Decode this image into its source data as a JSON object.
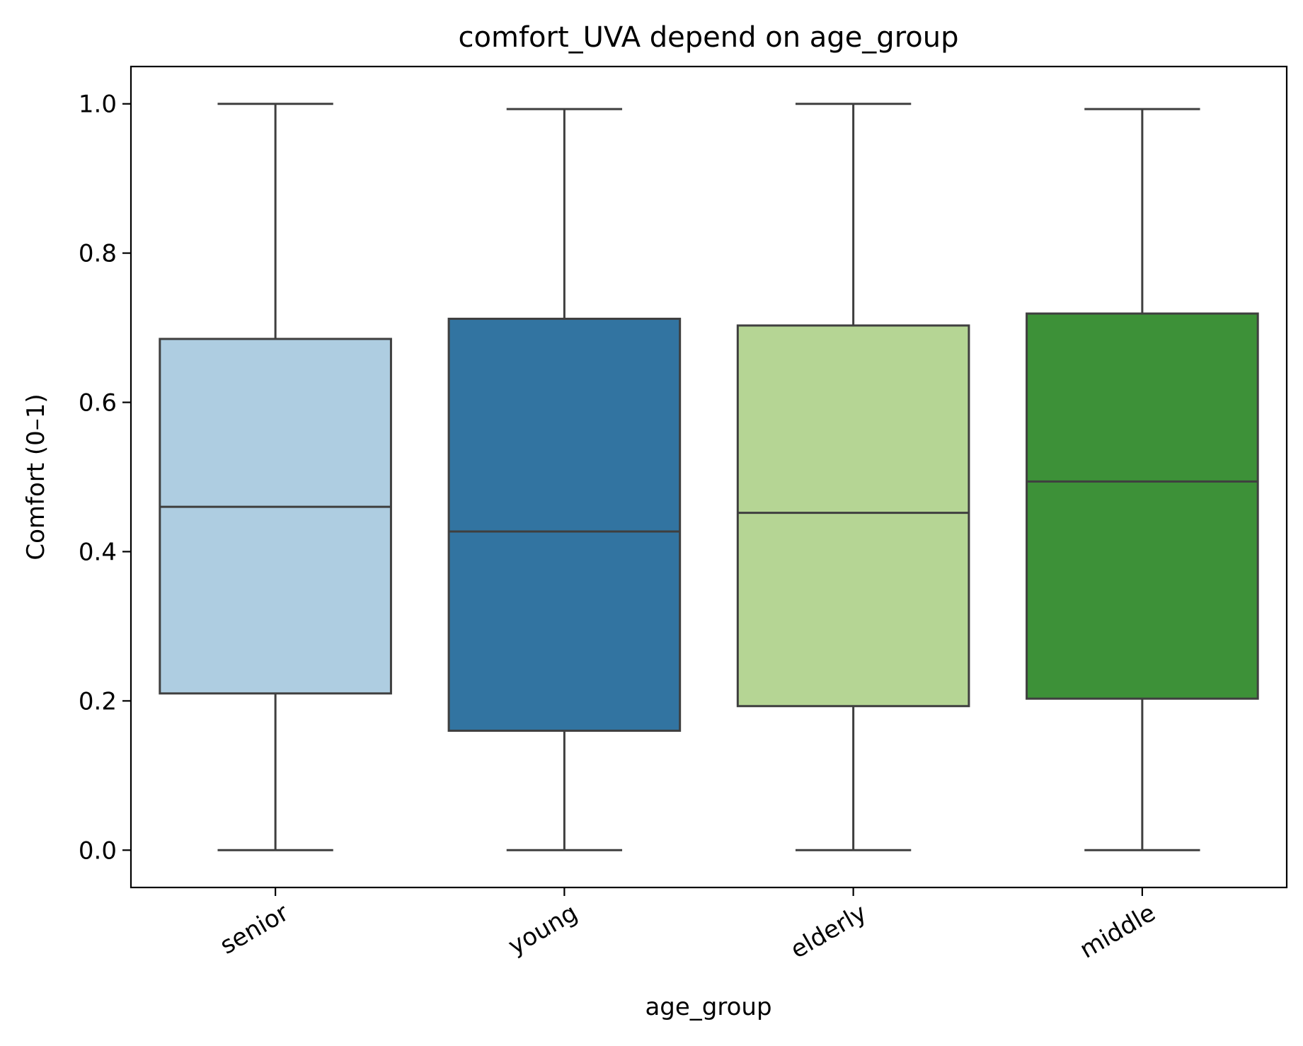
{
  "chart_data": {
    "type": "box",
    "title": "comfort_UVA depend on age_group",
    "xlabel": "age_group",
    "ylabel": "Comfort (0–1)",
    "ylim": [
      -0.05,
      1.05
    ],
    "yticks": [
      "0.0",
      "0.2",
      "0.4",
      "0.6",
      "0.8",
      "1.0"
    ],
    "ytick_values": [
      0.0,
      0.2,
      0.4,
      0.6,
      0.8,
      1.0
    ],
    "categories": [
      "senior",
      "young",
      "elderly",
      "middle"
    ],
    "boxes": [
      {
        "category": "senior",
        "min": 0.0,
        "q1": 0.21,
        "median": 0.46,
        "q3": 0.685,
        "max": 1.0,
        "color": "#aecde1"
      },
      {
        "category": "young",
        "min": 0.0,
        "q1": 0.16,
        "median": 0.427,
        "q3": 0.712,
        "max": 0.993,
        "color": "#3274a1"
      },
      {
        "category": "elderly",
        "min": 0.0,
        "q1": 0.193,
        "median": 0.452,
        "q3": 0.703,
        "max": 1.0,
        "color": "#b5d594"
      },
      {
        "category": "middle",
        "min": 0.0,
        "q1": 0.203,
        "median": 0.494,
        "q3": 0.719,
        "max": 0.993,
        "color": "#3d9138"
      }
    ],
    "grid": false,
    "legend": false,
    "line_color": "#3f3f3f"
  }
}
